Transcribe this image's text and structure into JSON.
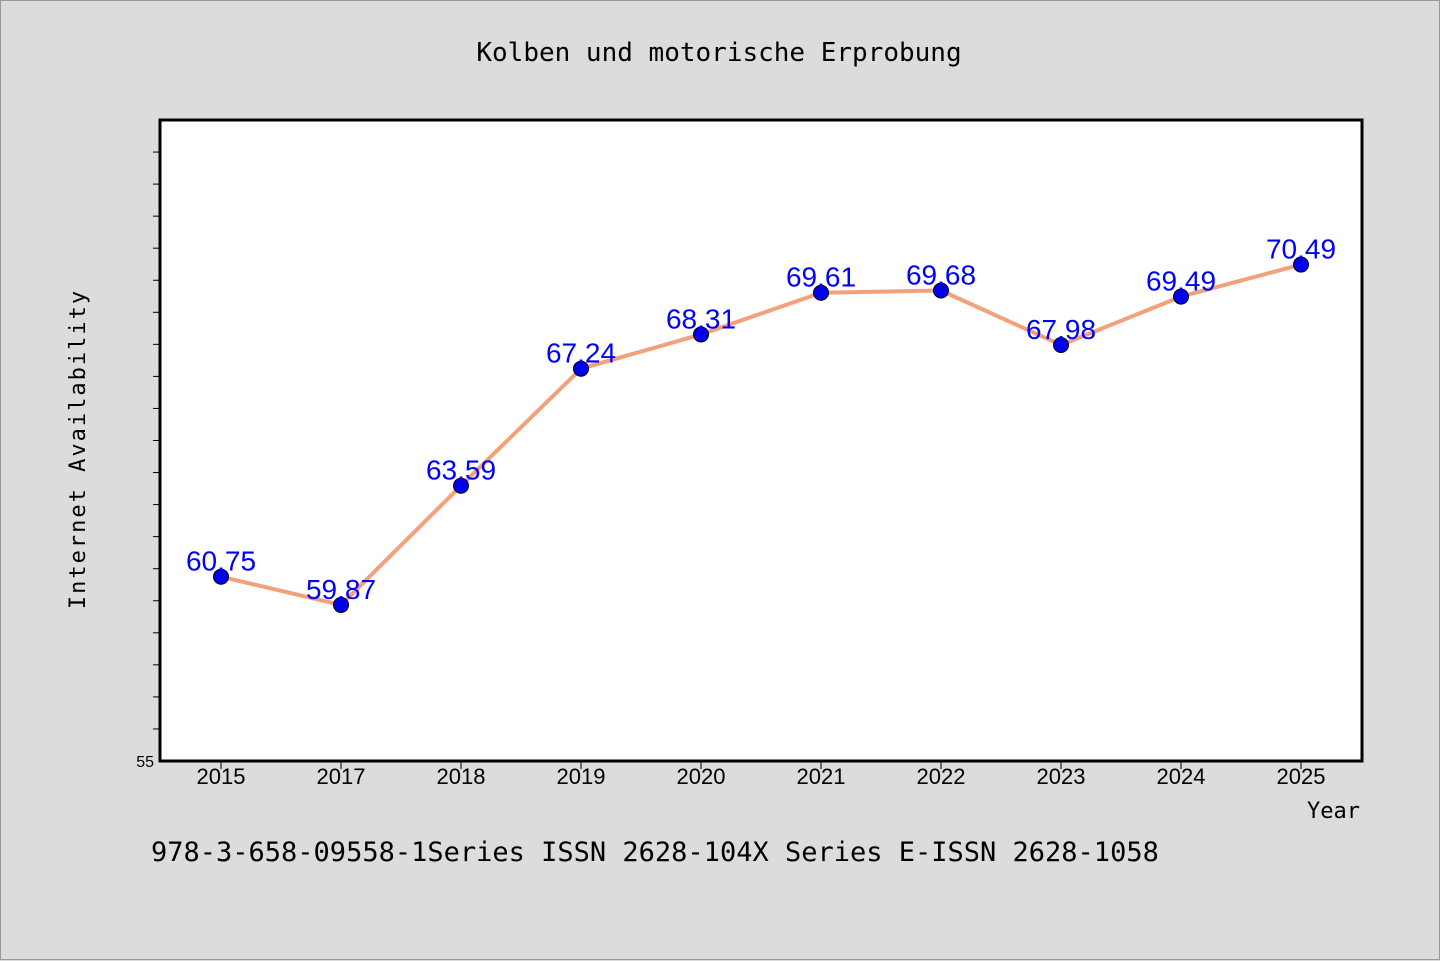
{
  "chart_data": {
    "type": "line",
    "title": "Kolben und motorische Erprobung",
    "xlabel": "Year",
    "ylabel": "Internet Availability",
    "categories": [
      "2015",
      "2017",
      "2018",
      "2019",
      "2020",
      "2021",
      "2022",
      "2023",
      "2024",
      "2025"
    ],
    "series": [
      {
        "values": [
          60.75,
          59.87,
          63.59,
          67.24,
          68.31,
          69.61,
          69.68,
          67.98,
          69.49,
          70.49
        ],
        "data_labels": [
          "60.75",
          "59.87",
          "63.59",
          "67.24",
          "68.31",
          "69.61",
          "69.68",
          "67.98",
          "69.49",
          "70.49"
        ],
        "line_color": "#f4a07a",
        "marker_color": "#0000ee",
        "label_color": "#0000ff"
      }
    ],
    "ylim": [
      55,
      75
    ],
    "yticks": [
      "55"
    ],
    "grid": false,
    "legend": "none",
    "background": "#dcdcdc",
    "plot_background": "#ffffff"
  },
  "footer": {
    "text": "978-3-658-09558-1Series ISSN 2628-104X Series E-ISSN 2628-1058"
  }
}
